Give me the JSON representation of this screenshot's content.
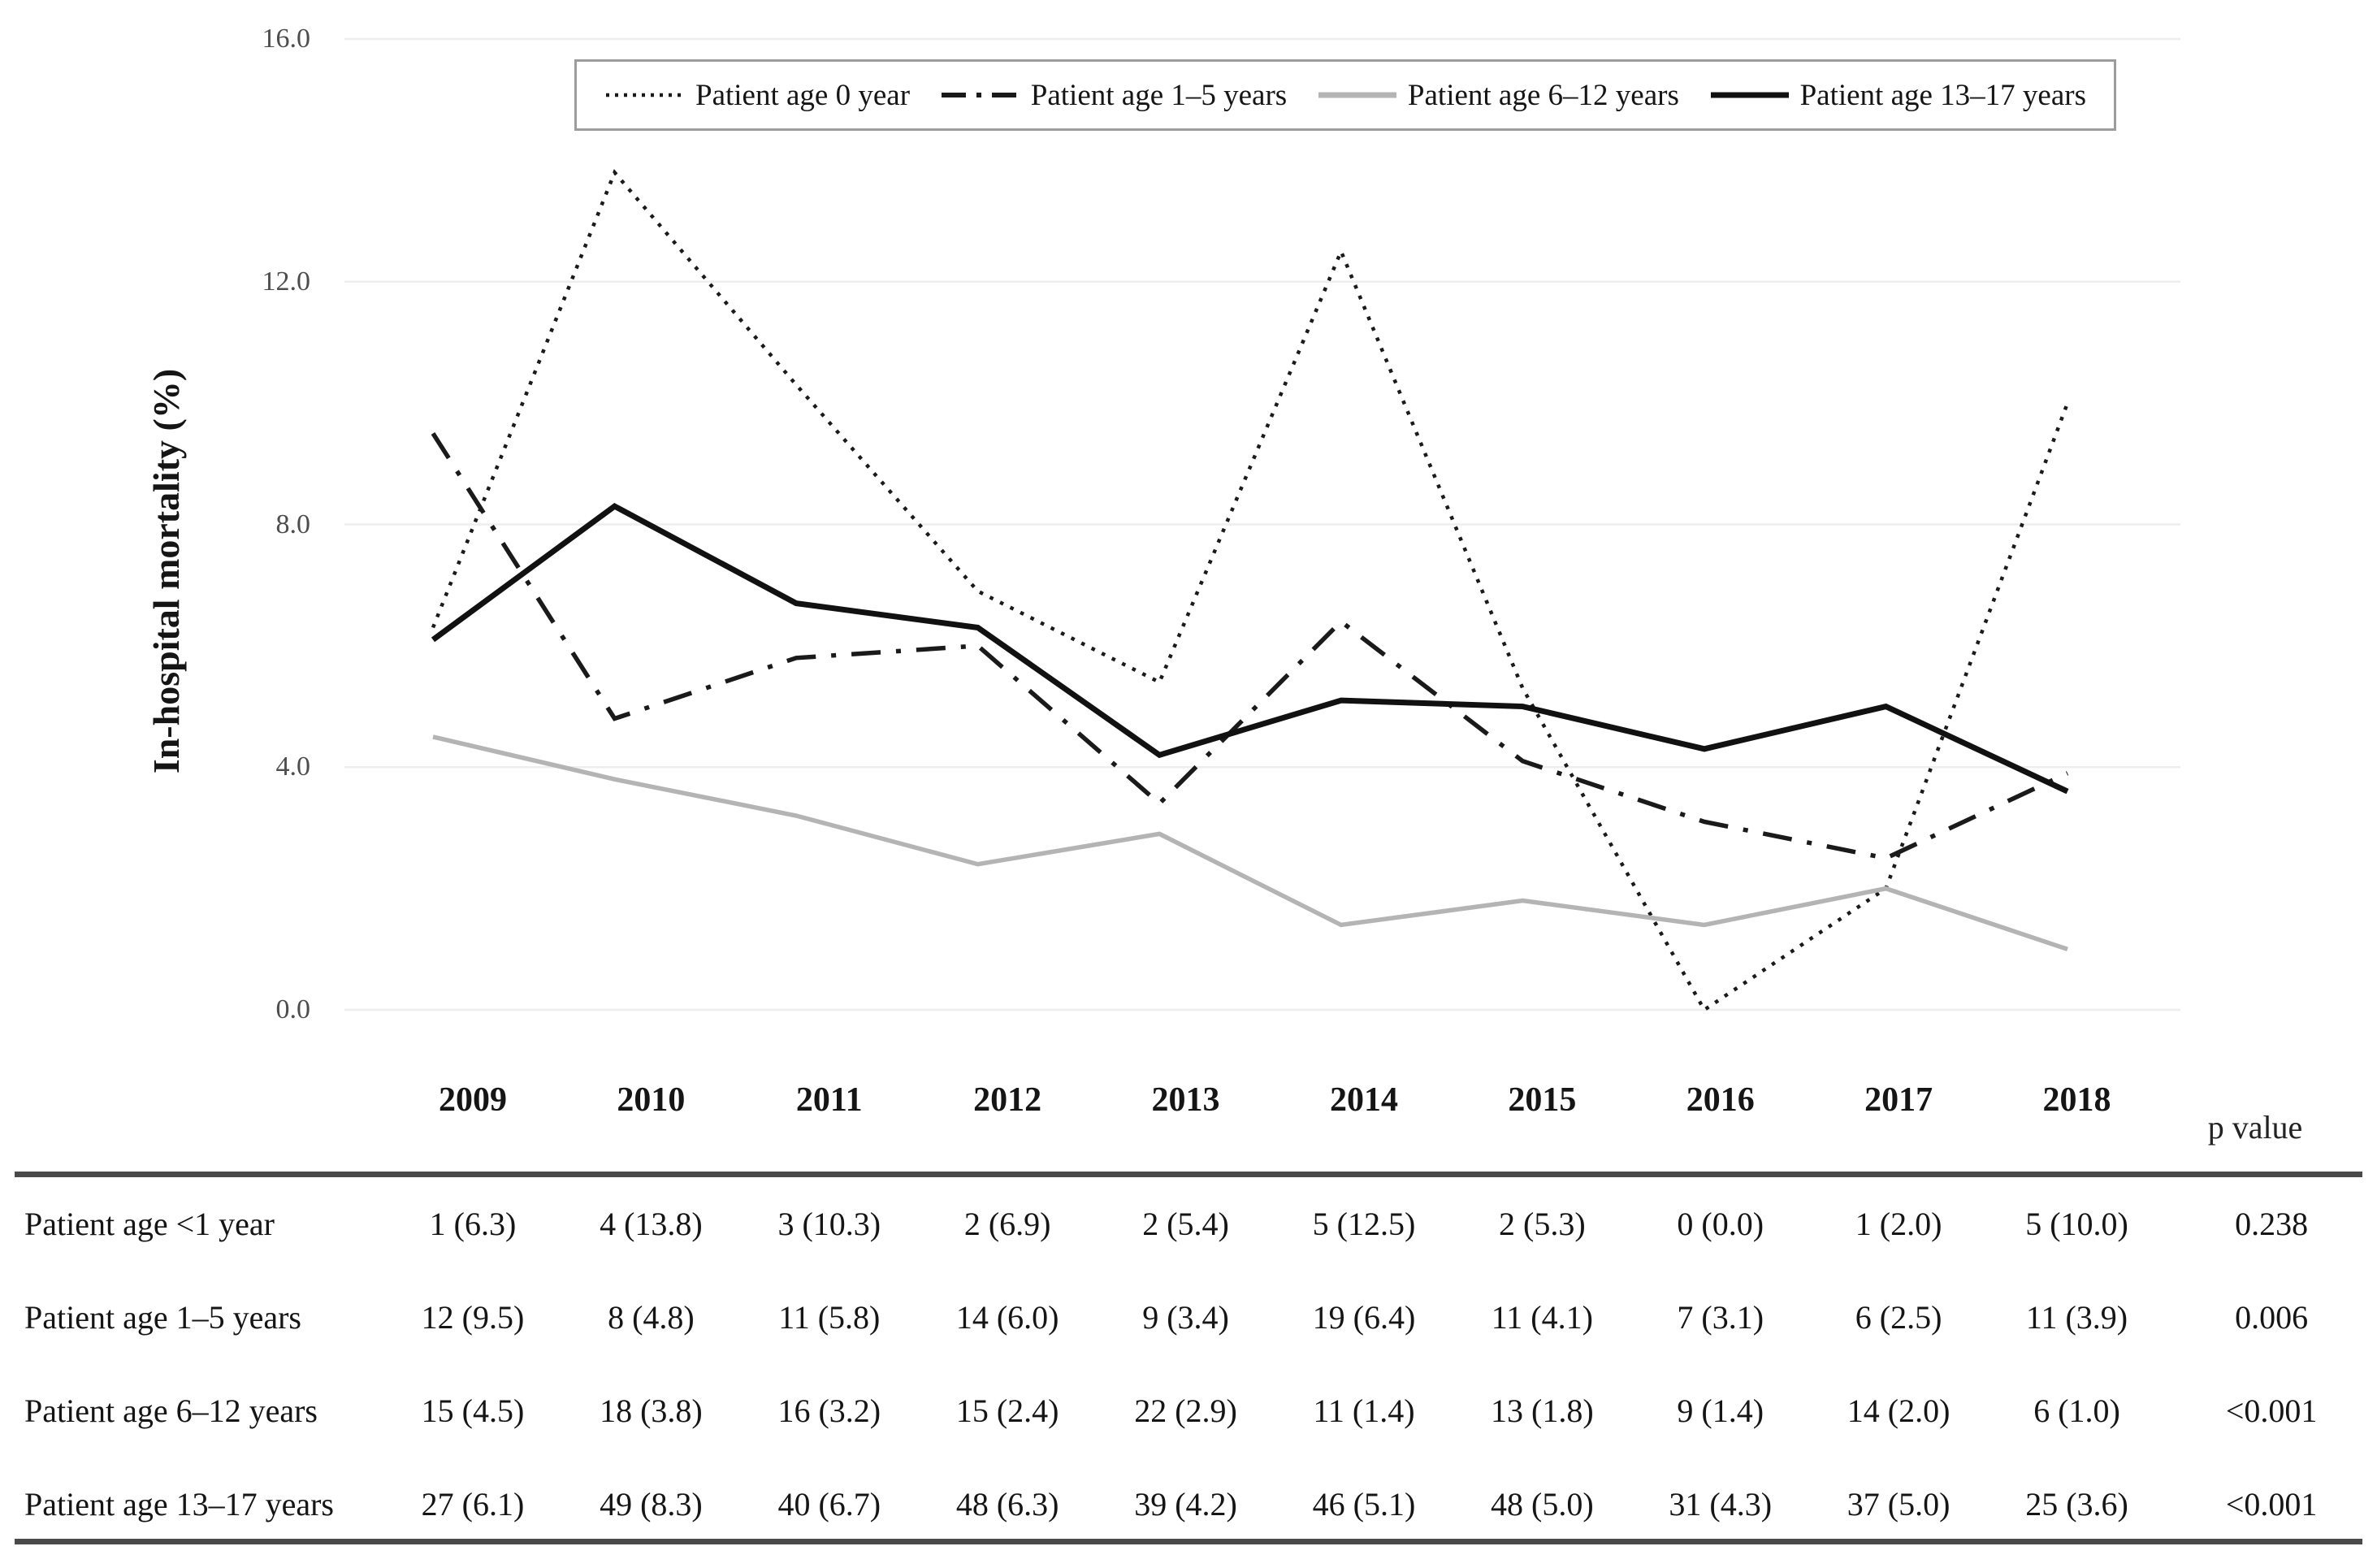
{
  "chart_data": {
    "type": "line",
    "x": [
      2009,
      2010,
      2011,
      2012,
      2013,
      2014,
      2015,
      2016,
      2017,
      2018
    ],
    "ylabel": "In-hospital mortality (%)",
    "ylim": [
      0,
      16
    ],
    "yticks": [
      0,
      4,
      8,
      12,
      16
    ],
    "ytick_labels": [
      "0.0",
      "4.0",
      "8.0",
      "12.0",
      "16.0"
    ],
    "grid": true,
    "legend_position": "top",
    "series": [
      {
        "name": "Patient age 0 year",
        "style": "dotted",
        "color": "#1a1a1a",
        "values": [
          6.3,
          13.8,
          10.3,
          6.9,
          5.4,
          12.5,
          5.3,
          0.0,
          2.0,
          10.0
        ]
      },
      {
        "name": "Patient age 1–5 years",
        "style": "dashdot",
        "color": "#1a1a1a",
        "values": [
          9.5,
          4.8,
          5.8,
          6.0,
          3.4,
          6.4,
          4.1,
          3.1,
          2.5,
          3.9
        ]
      },
      {
        "name": "Patient age 6–12 years",
        "style": "solid",
        "color": "#b4b4b4",
        "values": [
          4.5,
          3.8,
          3.2,
          2.4,
          2.9,
          1.4,
          1.8,
          1.4,
          2.0,
          1.0
        ]
      },
      {
        "name": "Patient age 13–17 years",
        "style": "solid",
        "color": "#111111",
        "values": [
          6.1,
          8.3,
          6.7,
          6.3,
          4.2,
          5.1,
          5.0,
          4.3,
          5.0,
          3.6
        ]
      }
    ]
  },
  "table": {
    "year_headers": [
      "2009",
      "2010",
      "2011",
      "2012",
      "2013",
      "2014",
      "2015",
      "2016",
      "2017",
      "2018"
    ],
    "p_header": "p value",
    "rows": [
      {
        "label": "Patient age <1 year",
        "cells": [
          "1 (6.3)",
          "4 (13.8)",
          "3 (10.3)",
          "2 (6.9)",
          "2 (5.4)",
          "5 (12.5)",
          "2 (5.3)",
          "0 (0.0)",
          "1 (2.0)",
          "5 (10.0)"
        ],
        "p": "0.238"
      },
      {
        "label": "Patient age 1–5 years",
        "cells": [
          "12 (9.5)",
          "8 (4.8)",
          "11 (5.8)",
          "14 (6.0)",
          "9 (3.4)",
          "19 (6.4)",
          "11 (4.1)",
          "7 (3.1)",
          "6 (2.5)",
          "11 (3.9)"
        ],
        "p": "0.006"
      },
      {
        "label": "Patient age 6–12 years",
        "cells": [
          "15 (4.5)",
          "18 (3.8)",
          "16 (3.2)",
          "15 (2.4)",
          "22 (2.9)",
          "11 (1.4)",
          "13 (1.8)",
          "9 (1.4)",
          "14 (2.0)",
          "6 (1.0)"
        ],
        "p": "<0.001"
      },
      {
        "label": "Patient age 13–17 years",
        "cells": [
          "27 (6.1)",
          "49 (8.3)",
          "40 (6.7)",
          "48 (6.3)",
          "39 (4.2)",
          "46 (5.1)",
          "48 (5.0)",
          "31 (4.3)",
          "37 (5.0)",
          "25 (3.6)"
        ],
        "p": "<0.001"
      }
    ]
  },
  "colors": {
    "grid": "#eeeeee",
    "axis_text": "#4d4d4d",
    "rule": "#4a4a4a",
    "legend_border": "#9c9c9c",
    "text": "#151515"
  }
}
